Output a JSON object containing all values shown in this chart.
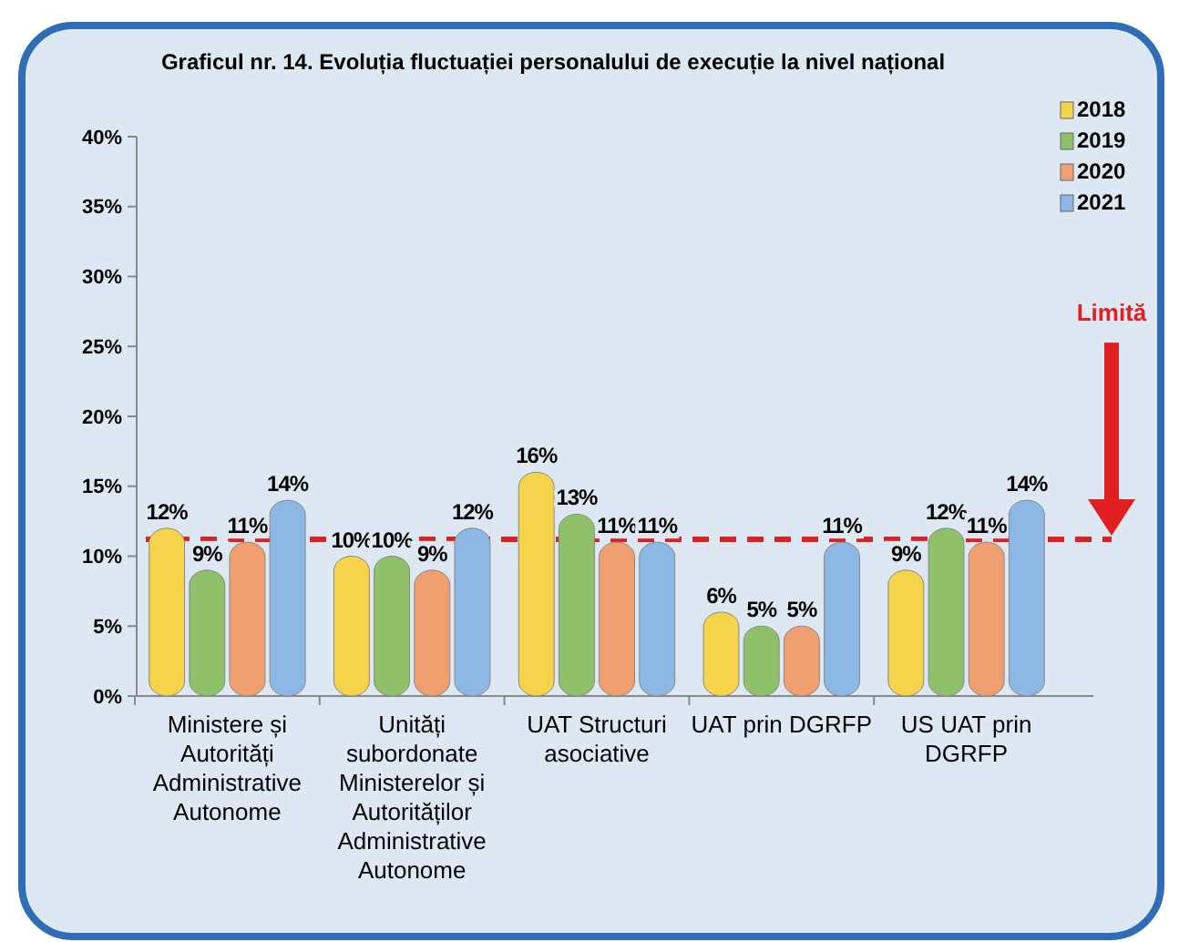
{
  "chart_data": {
    "type": "bar",
    "title": "Graficul nr. 14. Evoluția fluctuației personalului de execuție la nivel național",
    "categories": [
      "Ministere și Autorități Administrative Autonome",
      "Unități subordonate Ministerelor și Autorităților Administrative Autonome",
      "UAT Structuri asociative",
      "UAT prin DGRFP",
      "US UAT prin DGRFP"
    ],
    "series": [
      {
        "name": "2018",
        "color": "#f5d34a",
        "values": [
          12,
          10,
          16,
          6,
          9
        ],
        "value_labels": [
          "12%",
          "10%",
          "16%",
          "6%",
          "9%"
        ]
      },
      {
        "name": "2019",
        "color": "#8fc16a",
        "values": [
          9,
          10,
          13,
          5,
          12
        ],
        "value_labels": [
          "9%",
          "10%",
          "13%",
          "5%",
          "12%"
        ]
      },
      {
        "name": "2020",
        "color": "#f0a070",
        "values": [
          11,
          9,
          11,
          5,
          11
        ],
        "value_labels": [
          "11%",
          "9%",
          "11%",
          "5%",
          "11%"
        ]
      },
      {
        "name": "2021",
        "color": "#8db8e6",
        "values": [
          14,
          12,
          11,
          11,
          14
        ],
        "value_labels": [
          "14%",
          "12%",
          "11%",
          "11%",
          "14%"
        ]
      }
    ],
    "ylim": [
      0,
      40
    ],
    "yticks": [
      {
        "value": 0,
        "label": "0%"
      },
      {
        "value": 5,
        "label": "5%"
      },
      {
        "value": 10,
        "label": "10%"
      },
      {
        "value": 15,
        "label": "15%"
      },
      {
        "value": 20,
        "label": "20%"
      },
      {
        "value": 25,
        "label": "25%"
      },
      {
        "value": 30,
        "label": "30%"
      },
      {
        "value": 35,
        "label": "35%"
      },
      {
        "value": 40,
        "label": "40%"
      }
    ],
    "ref_lines": [
      {
        "axis": "y",
        "value": 11.2,
        "label": "Limită",
        "color": "#e02020",
        "line_style": "dashed"
      }
    ],
    "legend": "top right",
    "grid": false
  }
}
